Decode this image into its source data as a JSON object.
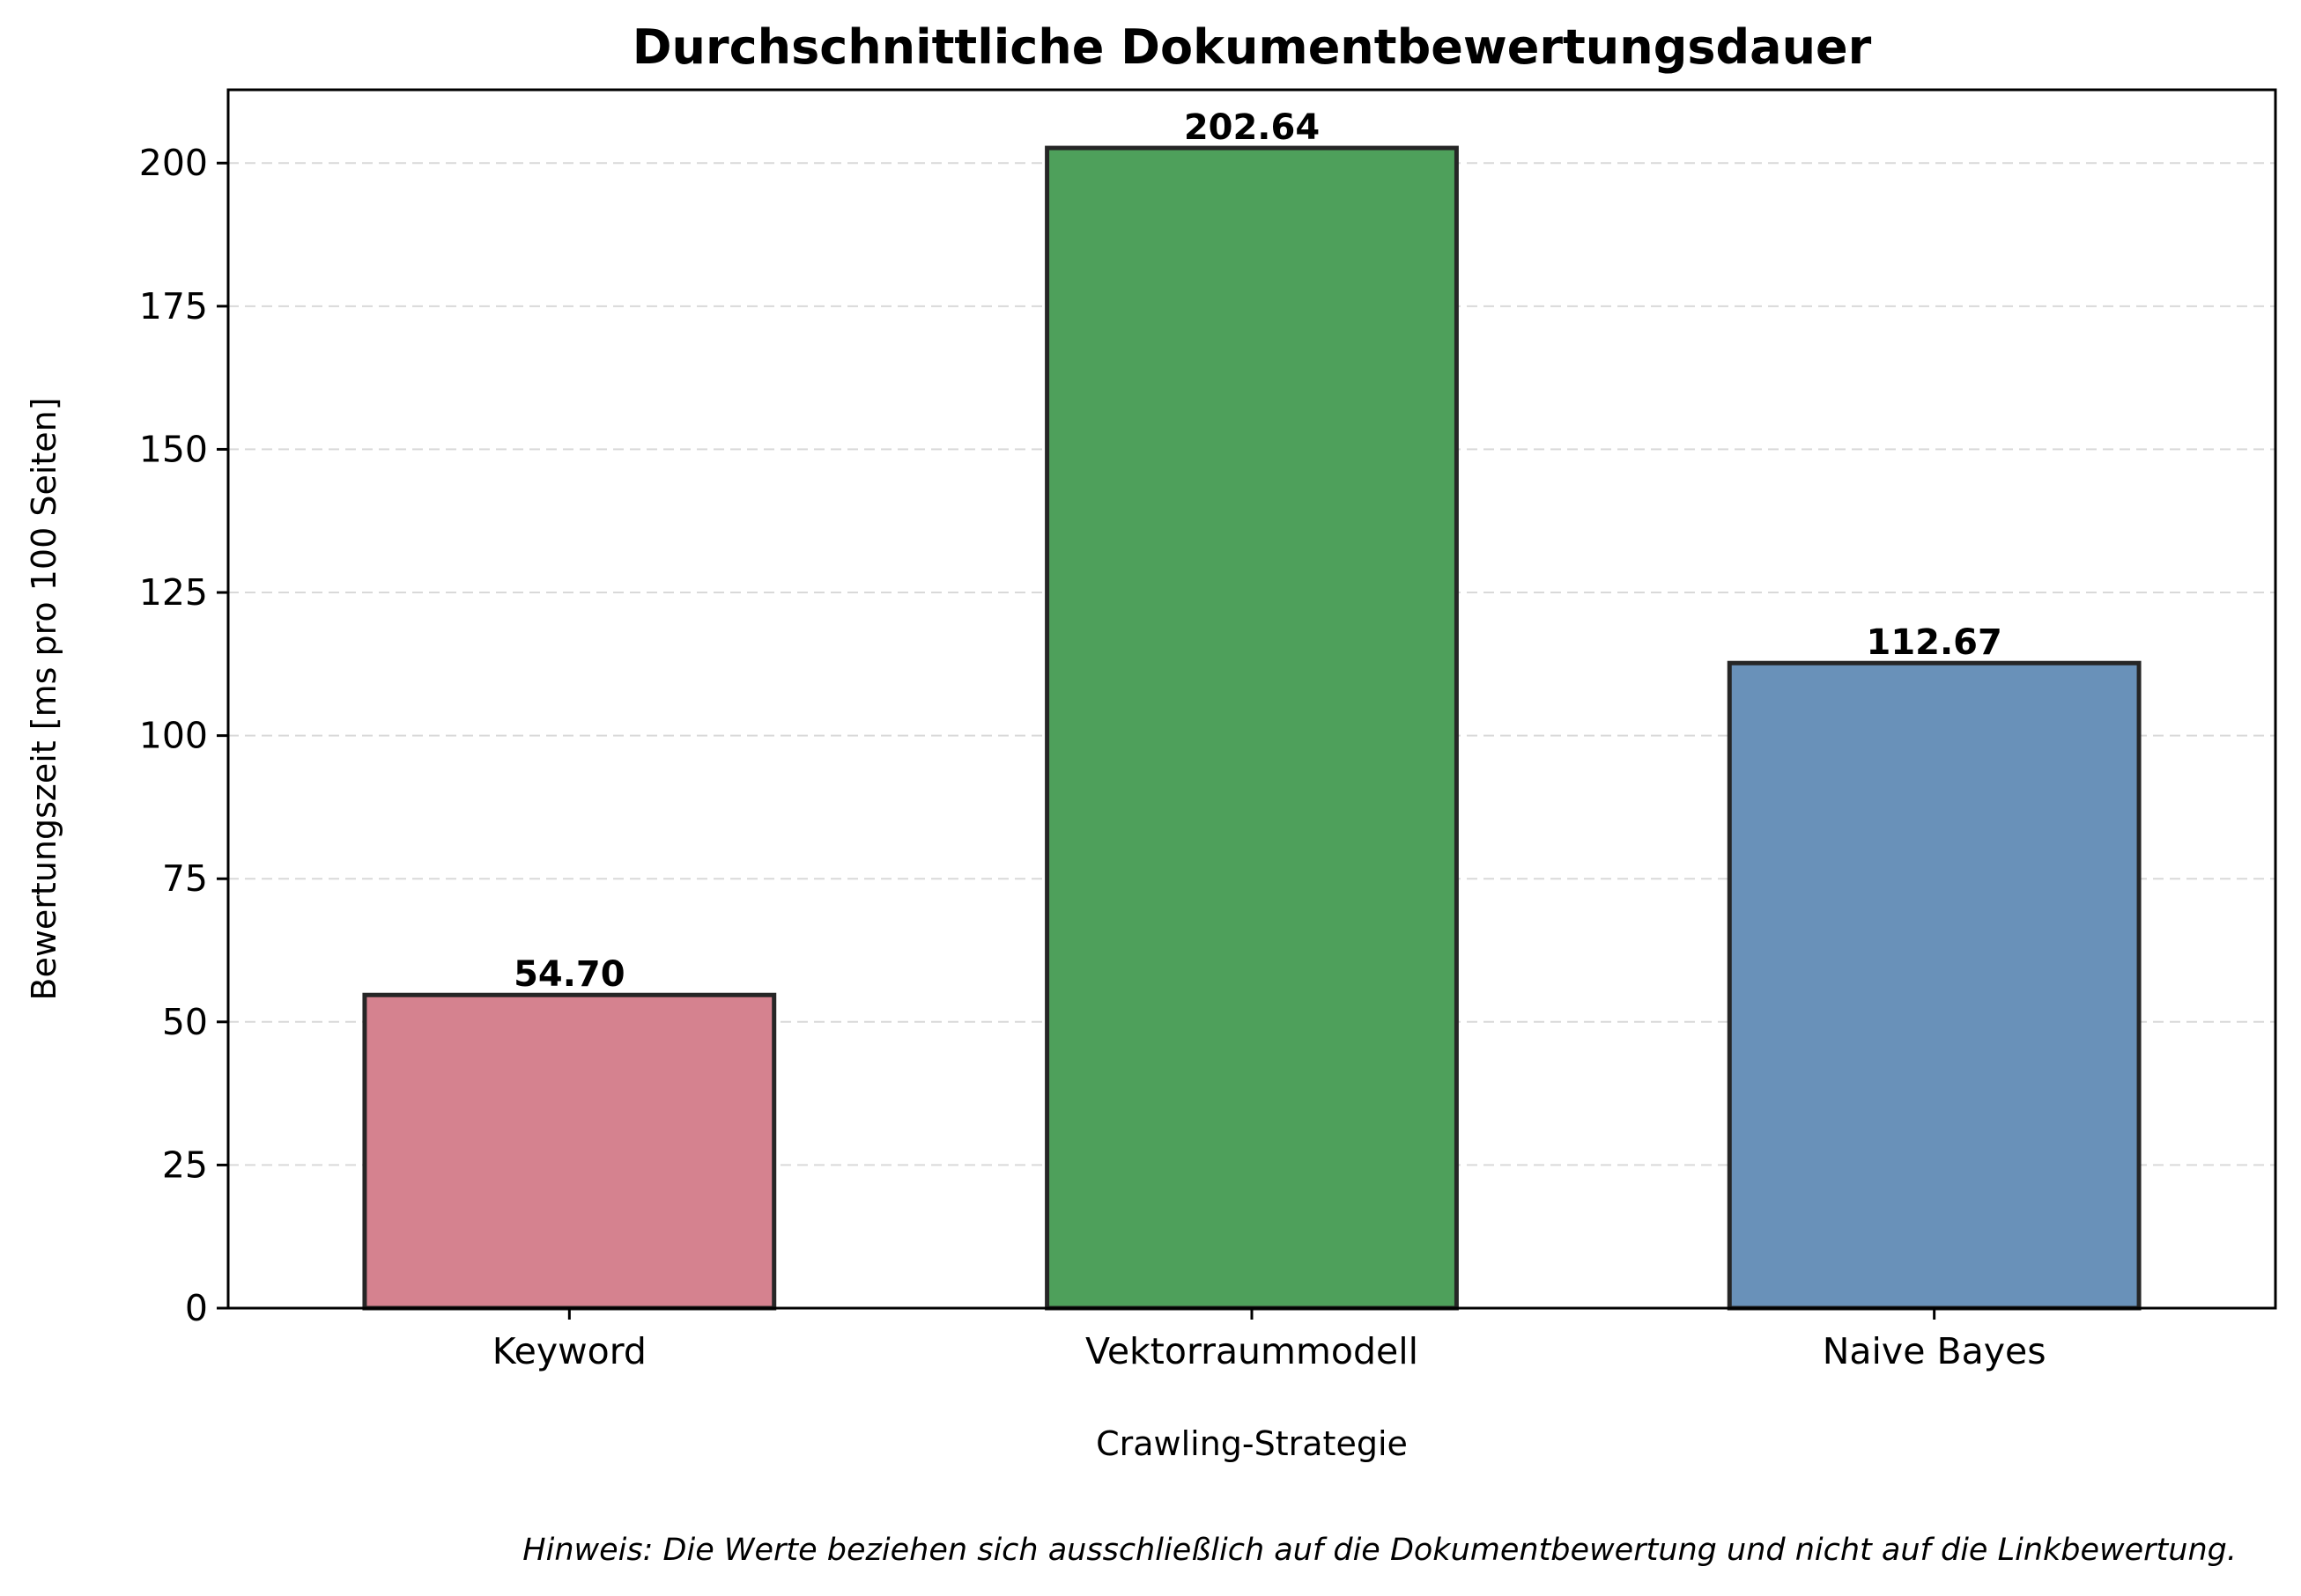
{
  "chart_data": {
    "type": "bar",
    "title": "Durchschnittliche Dokumentbewertungsdauer",
    "xlabel": "Crawling-Strategie",
    "ylabel": "Bewertungszeit [ms pro 100 Seiten]",
    "categories": [
      "Keyword",
      "Vektorraummodell",
      "Naive Bayes"
    ],
    "values": [
      54.7,
      202.64,
      112.67
    ],
    "value_labels": [
      "54.70",
      "202.64",
      "112.67"
    ],
    "colors": [
      "#d5828f",
      "#4ea05b",
      "#6991b9"
    ],
    "ylim": [
      0,
      212.8
    ],
    "yticks": [
      0,
      25,
      50,
      75,
      100,
      125,
      150,
      175,
      200
    ],
    "grid": true,
    "grid_axis": "y",
    "legend": false
  },
  "note": "Hinweis: Die Werte beziehen sich ausschließlich auf die Dokumentbewertung und nicht auf die Linkbewertung."
}
